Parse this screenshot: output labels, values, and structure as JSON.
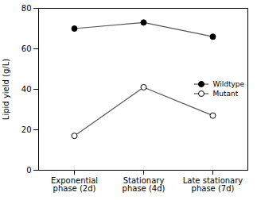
{
  "chart_data": {
    "type": "line",
    "categories": [
      "Exponential\nphase (2d)",
      "Stationary\nphase (4d)",
      "Late stationary\nphase (7d)"
    ],
    "series": [
      {
        "name": "Wildtype",
        "color": "#555555",
        "marker": "filled_circle",
        "values": [
          70,
          73,
          66
        ]
      },
      {
        "name": "Mutant",
        "color": "#555555",
        "marker": "open_circle",
        "values": [
          17,
          41,
          27
        ]
      }
    ],
    "ylabel": "Lipid yield (g/L)",
    "ylim": [
      0,
      80
    ],
    "yticks": [
      0,
      20,
      40,
      60,
      80
    ],
    "legend": "center right",
    "grid": false
  }
}
